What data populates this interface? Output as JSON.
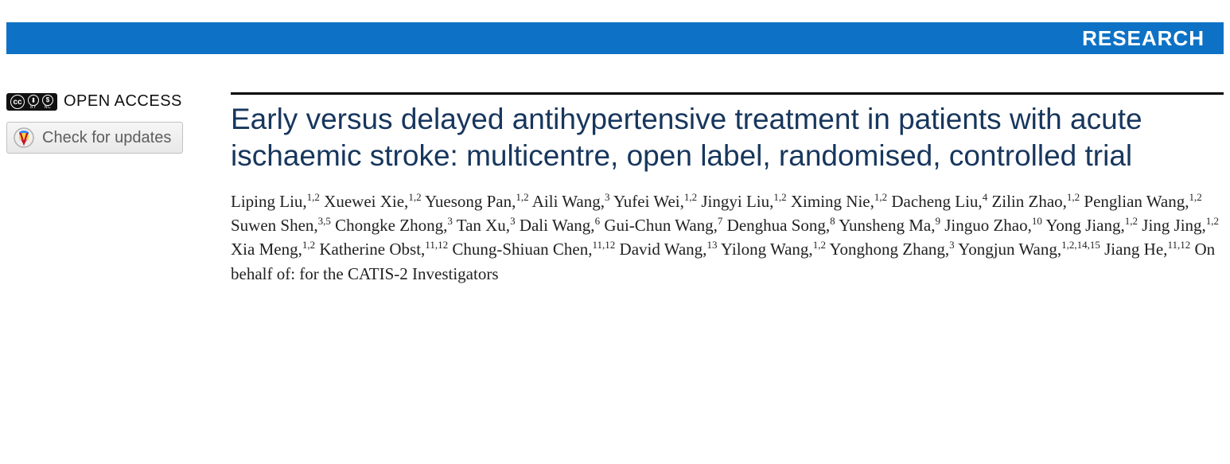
{
  "banner": {
    "label": "RESEARCH",
    "background_color": "#0d72c5",
    "text_color": "#ffffff"
  },
  "sidebar": {
    "open_access_label": "OPEN ACCESS",
    "cc_main": "cc",
    "cc_by": "BY",
    "cc_nc": "NC",
    "updates_button_label": "Check for updates"
  },
  "article": {
    "title": "Early versus delayed antihypertensive treatment in patients with acute ischaemic stroke: multicentre, open label, randomised, controlled trial",
    "title_color": "#17365d",
    "authors": [
      {
        "name": "Liping Liu",
        "aff": "1,2"
      },
      {
        "name": "Xuewei Xie",
        "aff": "1,2"
      },
      {
        "name": "Yuesong Pan",
        "aff": "1,2"
      },
      {
        "name": "Aili Wang",
        "aff": "3"
      },
      {
        "name": "Yufei Wei",
        "aff": "1,2"
      },
      {
        "name": "Jingyi Liu",
        "aff": "1,2"
      },
      {
        "name": "Ximing Nie",
        "aff": "1,2"
      },
      {
        "name": "Dacheng Liu",
        "aff": "4"
      },
      {
        "name": "Zilin Zhao",
        "aff": "1,2"
      },
      {
        "name": "Penglian Wang",
        "aff": "1,2"
      },
      {
        "name": "Suwen Shen",
        "aff": "3,5"
      },
      {
        "name": "Chongke Zhong",
        "aff": "3"
      },
      {
        "name": "Tan Xu",
        "aff": "3"
      },
      {
        "name": "Dali Wang",
        "aff": "6"
      },
      {
        "name": "Gui-Chun Wang",
        "aff": "7"
      },
      {
        "name": "Denghua Song",
        "aff": "8"
      },
      {
        "name": "Yunsheng Ma",
        "aff": "9"
      },
      {
        "name": "Jinguo Zhao",
        "aff": "10"
      },
      {
        "name": "Yong Jiang",
        "aff": "1,2"
      },
      {
        "name": "Jing Jing",
        "aff": "1,2"
      },
      {
        "name": "Xia Meng",
        "aff": "1,2"
      },
      {
        "name": "Katherine Obst",
        "aff": "11,12"
      },
      {
        "name": "Chung-Shiuan Chen",
        "aff": "11,12"
      },
      {
        "name": "David Wang",
        "aff": "13"
      },
      {
        "name": "Yilong Wang",
        "aff": "1,2"
      },
      {
        "name": "Yonghong Zhang",
        "aff": "3"
      },
      {
        "name": "Yongjun Wang",
        "aff": "1,2,14,15"
      },
      {
        "name": "Jiang He",
        "aff": "11,12"
      }
    ],
    "authors_suffix": "On behalf of: for the CATIS-2 Investigators"
  }
}
